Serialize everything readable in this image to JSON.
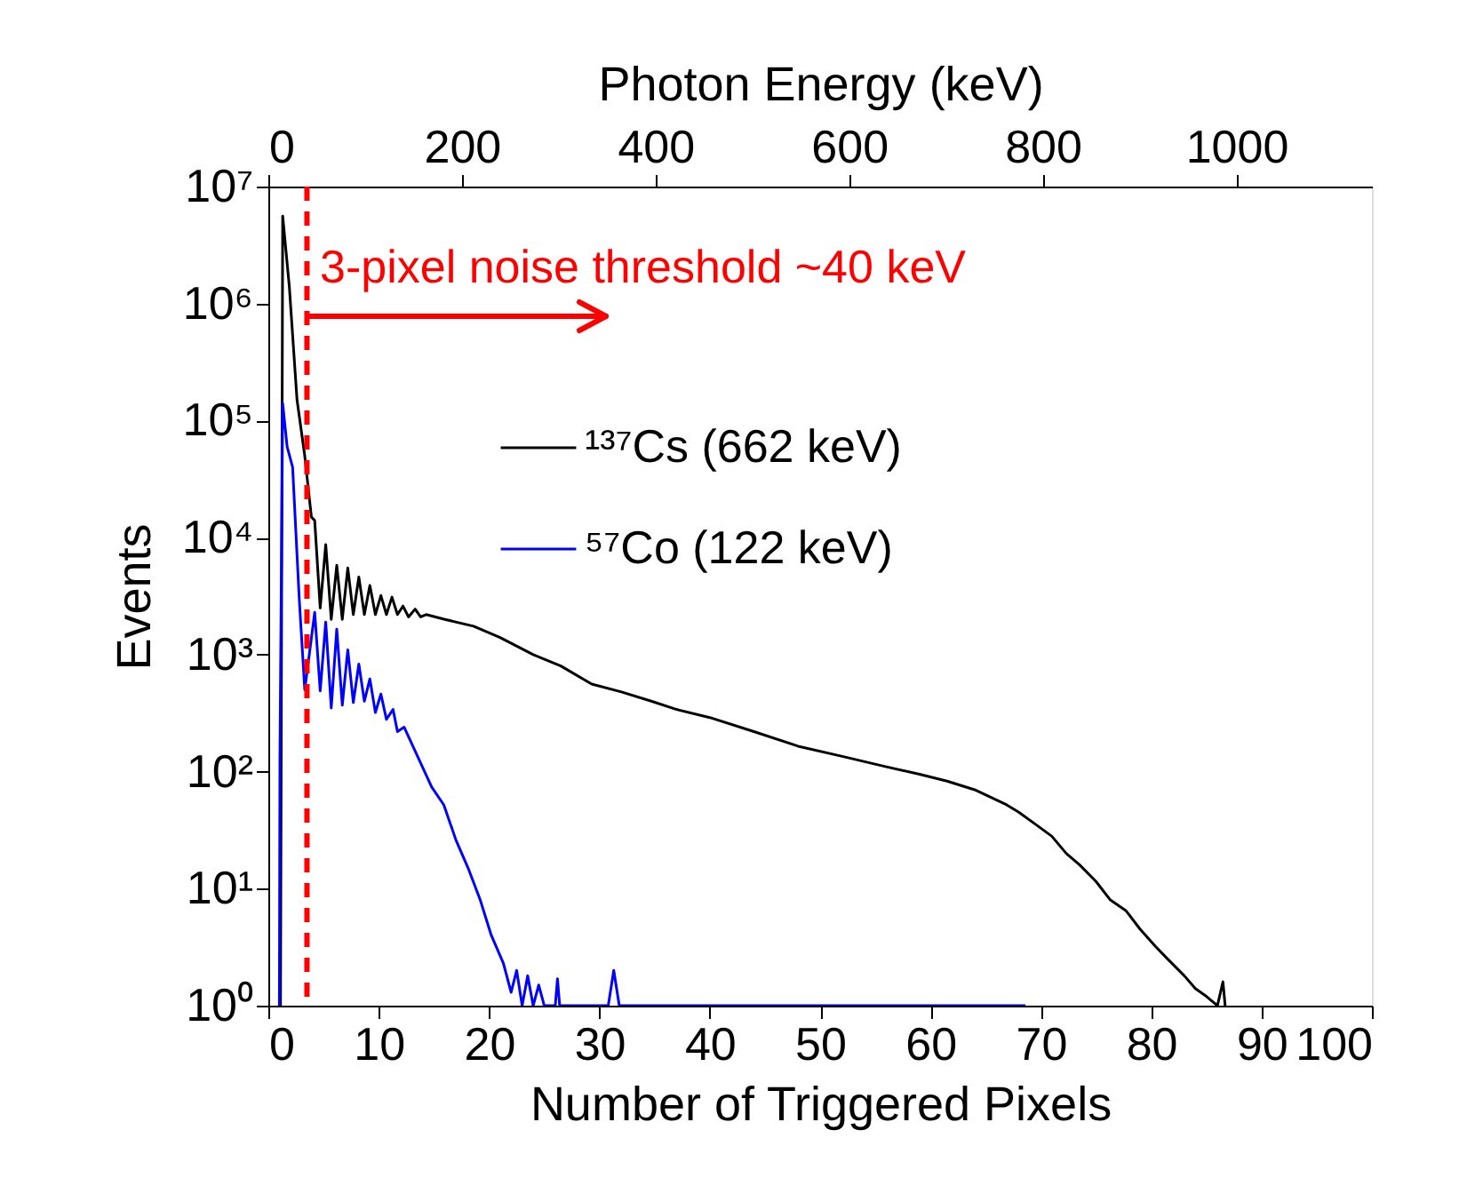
{
  "chart_data": {
    "type": "line",
    "xlabel": "Number of Triggered Pixels",
    "ylabel": "Events",
    "x2label": "Photon Energy (keV)",
    "xlim": [
      0,
      100
    ],
    "xticks": [
      0,
      10,
      20,
      30,
      40,
      50,
      60,
      70,
      80,
      90,
      100
    ],
    "x2lim": [
      0,
      1140
    ],
    "x2ticks": [
      0,
      200,
      400,
      600,
      800,
      1000
    ],
    "ylim": [
      1,
      10000000
    ],
    "yticks": [
      {
        "value": 1,
        "label": "10⁰"
      },
      {
        "value": 10,
        "label": "10¹"
      },
      {
        "value": 100,
        "label": "10²"
      },
      {
        "value": 1000,
        "label": "10³"
      },
      {
        "value": 10000,
        "label": "10⁴"
      },
      {
        "value": 100000,
        "label": "10⁵"
      },
      {
        "value": 1000000,
        "label": "10⁶"
      },
      {
        "value": 10000000,
        "label": "10⁷"
      }
    ],
    "log": "y",
    "grid": false,
    "legend": "top",
    "marker": "none",
    "line_style": "solid",
    "series": [
      {
        "name": "¹³⁷Cs (662 keV)",
        "color": "#000000",
        "x": [
          1.1,
          1.3,
          1.9,
          2.6,
          3.3,
          3.9,
          4.2,
          4.7,
          5.2,
          5.7,
          6.2,
          6.7,
          7.2,
          7.7,
          8.2,
          8.7,
          9.2,
          9.7,
          10.2,
          10.7,
          11.2,
          11.7,
          12.2,
          12.7,
          13.3,
          13.8,
          14.3,
          16,
          18.6,
          21,
          24,
          26.5,
          29.3,
          32,
          34.7,
          37,
          40,
          44,
          48,
          52,
          56,
          59,
          61.5,
          64,
          66.9,
          68,
          69.6,
          71,
          72.3,
          73.5,
          75,
          76.3,
          77.7,
          79,
          80.4,
          81.5,
          83,
          84,
          85,
          86,
          86.5,
          86.7
        ],
        "values": [
          1,
          5600000,
          1400000,
          150000,
          50000,
          15000,
          14000,
          2500,
          8700,
          2000,
          5800,
          2000,
          5500,
          2200,
          4600,
          2200,
          3900,
          2200,
          3200,
          2200,
          3100,
          2200,
          2600,
          2100,
          2450,
          2100,
          2200,
          2000,
          1750,
          1400,
          1000,
          800,
          560,
          480,
          400,
          340,
          290,
          220,
          165,
          135,
          110,
          95,
          83,
          70,
          52,
          45,
          35,
          28,
          20,
          16,
          11.5,
          8,
          6.5,
          4.5,
          3.2,
          2.5,
          1.8,
          1.4,
          1.2,
          1,
          1.6,
          1
        ]
      },
      {
        "name": "⁵⁷Co (122 keV)",
        "color": "#0000ff",
        "x": [
          1.0,
          1.05,
          1.3,
          1.7,
          2.2,
          2.8,
          3.3,
          4.2,
          4.7,
          5.2,
          5.7,
          6.2,
          6.7,
          7.2,
          7.7,
          8.2,
          8.7,
          9.2,
          9.7,
          10.2,
          10.7,
          11.3,
          11.7,
          12.3,
          13.3,
          14.8,
          15.9,
          17,
          18.1,
          19.2,
          20.2,
          21.3,
          22,
          22.5,
          23,
          23.5,
          24,
          24.5,
          25,
          26,
          26.2,
          26.4,
          30.8,
          31.3,
          31.8,
          68.6
        ],
        "values": [
          1,
          130,
          140000,
          60000,
          40000,
          3000,
          500,
          2300,
          490,
          1900,
          350,
          1650,
          370,
          1100,
          390,
          830,
          400,
          620,
          320,
          460,
          280,
          340,
          220,
          240,
          150,
          74,
          52,
          26,
          15,
          8,
          4,
          2.3,
          1.3,
          2,
          1,
          1.8,
          1,
          1.5,
          1,
          1,
          1.7,
          1,
          1,
          2,
          1,
          1
        ]
      }
    ],
    "ref_lines": [
      {
        "axis": "x",
        "value": 3.5,
        "color": "#ff0000",
        "line_style": "dashed"
      }
    ],
    "annotations": [
      "3-pixel noise threshold ~40 keV"
    ]
  }
}
